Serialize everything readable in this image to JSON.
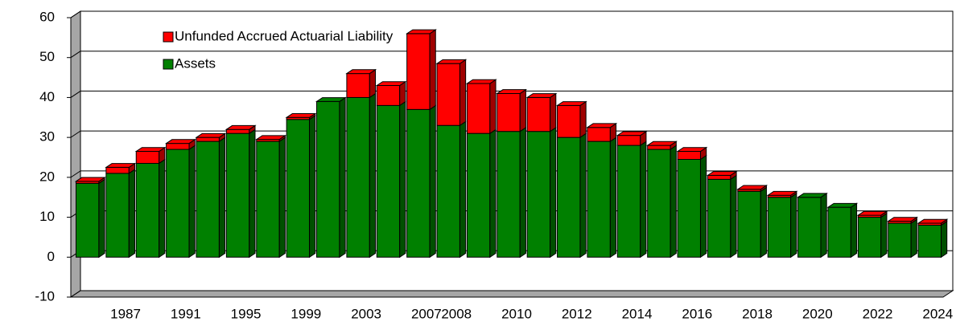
{
  "chart_data": {
    "type": "bar",
    "stacked": true,
    "categories": [
      null,
      "1987",
      null,
      "1991",
      null,
      "1995",
      null,
      "1999",
      null,
      "2003",
      null,
      "2007",
      "2008",
      null,
      "2010",
      null,
      "2012",
      null,
      "2014",
      null,
      "2016",
      null,
      "2018",
      null,
      "2020",
      null,
      "2022",
      null,
      "2024"
    ],
    "series": [
      {
        "name": "Assets",
        "color": "#008000",
        "values": [
          18.5,
          21,
          23.5,
          27,
          29,
          31,
          29,
          34.5,
          39,
          40,
          38,
          37,
          33,
          31,
          31.5,
          31.5,
          30,
          29,
          28,
          27,
          24.5,
          19.5,
          16.5,
          15,
          15,
          12.5,
          10,
          8.5,
          8
        ]
      },
      {
        "name": "Unfunded Accrued Actuarial Liability",
        "color": "#ff0000",
        "values": [
          0.5,
          1.5,
          3,
          1.5,
          1,
          1,
          0.5,
          0.5,
          0,
          6,
          5,
          19,
          15.5,
          12.5,
          9.5,
          8.5,
          8,
          3.5,
          2.5,
          1,
          2,
          1,
          0.5,
          0.5,
          0,
          0,
          0.5,
          0.5,
          0.5
        ]
      }
    ],
    "ylim": [
      -10,
      60
    ],
    "yticks": [
      -10,
      0,
      10,
      20,
      30,
      40,
      50,
      60
    ],
    "grid": true,
    "legend": "upper-left"
  }
}
